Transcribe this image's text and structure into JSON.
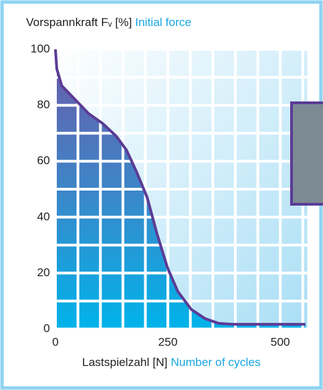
{
  "chart_data": {
    "type": "line",
    "y_label": "Vorspannkraft Fᵥ [%]",
    "y_label_en": "Initial force",
    "x_label": "Lastspielzahl  [N]",
    "x_label_en": "Number of cycles",
    "x": [
      0,
      3,
      14,
      44,
      74,
      105,
      135,
      158,
      181,
      204,
      226,
      249,
      272,
      302,
      333,
      363,
      394,
      556
    ],
    "series": [
      {
        "color": "#5b3c96",
        "values": [
          100,
          93,
          87,
          82,
          77,
          73.5,
          69,
          64,
          56,
          47,
          34,
          22,
          13.5,
          7,
          3.7,
          2,
          1.7,
          1.7
        ]
      }
    ],
    "xlim": [
      0,
      560
    ],
    "ylim": [
      0,
      100
    ],
    "xticks": [
      0,
      250,
      500
    ],
    "yticks": [
      0,
      20,
      40,
      60,
      80,
      100
    ],
    "x_minor_ticks": [
      50,
      100,
      150,
      200,
      300,
      350,
      400,
      450,
      550
    ],
    "y_minor_ticks": [
      10,
      30,
      50,
      70,
      90
    ],
    "grid": true
  }
}
